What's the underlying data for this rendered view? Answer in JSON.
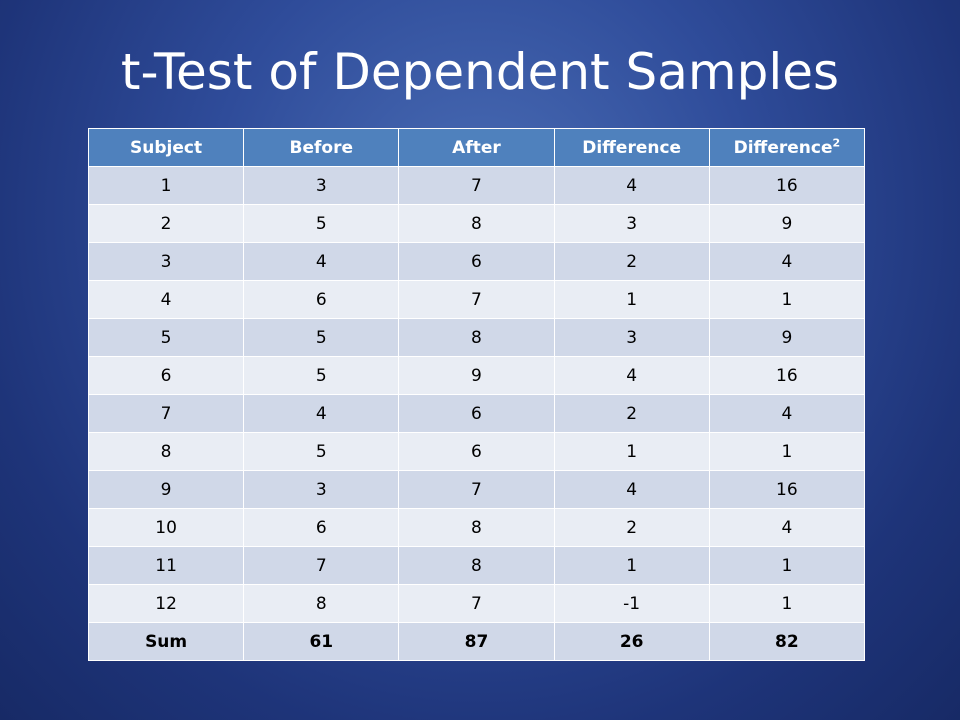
{
  "title": "t-Test of Dependent Samples",
  "table": {
    "headers": [
      "Subject",
      "Before",
      "After",
      "Difference",
      "Difference"
    ],
    "last_header_superscript": "2",
    "rows": [
      [
        "1",
        "3",
        "7",
        "4",
        "16"
      ],
      [
        "2",
        "5",
        "8",
        "3",
        "9"
      ],
      [
        "3",
        "4",
        "6",
        "2",
        "4"
      ],
      [
        "4",
        "6",
        "7",
        "1",
        "1"
      ],
      [
        "5",
        "5",
        "8",
        "3",
        "9"
      ],
      [
        "6",
        "5",
        "9",
        "4",
        "16"
      ],
      [
        "7",
        "4",
        "6",
        "2",
        "4"
      ],
      [
        "8",
        "5",
        "6",
        "1",
        "1"
      ],
      [
        "9",
        "3",
        "7",
        "4",
        "16"
      ],
      [
        "10",
        "6",
        "8",
        "2",
        "4"
      ],
      [
        "11",
        "7",
        "8",
        "1",
        "1"
      ],
      [
        "12",
        "8",
        "7",
        "-1",
        "1"
      ]
    ],
    "sum_row": [
      "Sum",
      "61",
      "87",
      "26",
      "82"
    ]
  },
  "colors": {
    "header": "#4f81bd",
    "row_dark": "#d0d8e8",
    "row_light": "#e9edf4",
    "background": "#2f4c9a"
  }
}
